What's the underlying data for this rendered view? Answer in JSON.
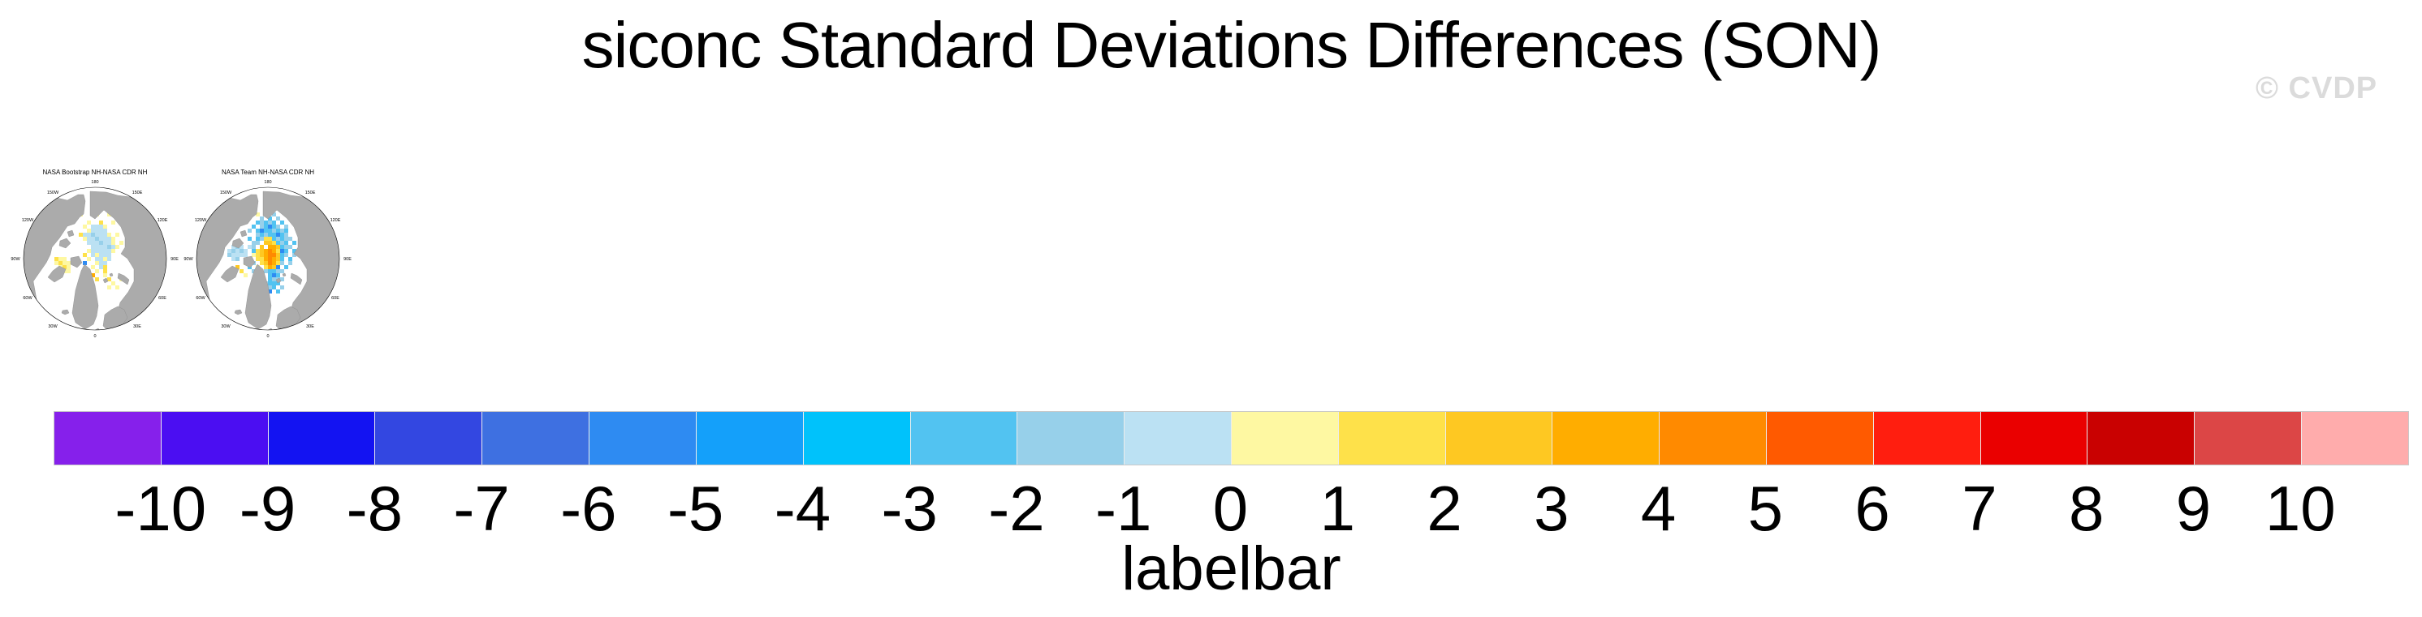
{
  "figure": {
    "title": "siconc Standard Deviations Differences (SON)",
    "watermark": "© CVDP"
  },
  "panels": [
    {
      "title": "NASA Bootstrap NH-NASA CDR NH",
      "lon_labels": [
        "180",
        "150W",
        "150E",
        "120W",
        "120E",
        "90W",
        "90E",
        "60W",
        "60E",
        "30W",
        "30E",
        "0"
      ],
      "cells": [
        [
          105,
          75,
          10
        ],
        [
          110,
          75,
          10
        ],
        [
          115,
          75,
          10
        ],
        [
          95,
          75,
          11
        ],
        [
          120,
          75,
          11
        ],
        [
          100,
          80,
          11
        ],
        [
          105,
          80,
          10
        ],
        [
          110,
          80,
          10
        ],
        [
          115,
          80,
          10
        ],
        [
          120,
          80,
          10
        ],
        [
          95,
          85,
          10
        ],
        [
          100,
          85,
          10
        ],
        [
          105,
          85,
          9
        ],
        [
          110,
          85,
          10
        ],
        [
          115,
          85,
          10
        ],
        [
          120,
          85,
          10
        ],
        [
          125,
          85,
          11
        ],
        [
          90,
          85,
          12
        ],
        [
          135,
          85,
          11
        ],
        [
          95,
          90,
          11
        ],
        [
          100,
          90,
          10
        ],
        [
          105,
          90,
          10
        ],
        [
          110,
          90,
          9
        ],
        [
          115,
          90,
          10
        ],
        [
          120,
          90,
          10
        ],
        [
          125,
          90,
          10
        ],
        [
          130,
          90,
          11
        ],
        [
          100,
          95,
          10
        ],
        [
          105,
          95,
          10
        ],
        [
          110,
          95,
          10
        ],
        [
          115,
          95,
          9
        ],
        [
          120,
          95,
          10
        ],
        [
          125,
          95,
          10
        ],
        [
          130,
          95,
          11
        ],
        [
          140,
          95,
          11
        ],
        [
          105,
          100,
          10
        ],
        [
          110,
          100,
          10
        ],
        [
          115,
          100,
          10
        ],
        [
          120,
          100,
          10
        ],
        [
          125,
          100,
          9
        ],
        [
          130,
          100,
          10
        ],
        [
          135,
          100,
          11
        ],
        [
          100,
          105,
          11
        ],
        [
          105,
          105,
          10
        ],
        [
          110,
          105,
          10
        ],
        [
          115,
          105,
          10
        ],
        [
          120,
          105,
          10
        ],
        [
          125,
          105,
          10
        ],
        [
          130,
          105,
          11
        ],
        [
          105,
          110,
          10
        ],
        [
          110,
          110,
          11
        ],
        [
          115,
          110,
          10
        ],
        [
          120,
          110,
          10
        ],
        [
          125,
          110,
          10
        ],
        [
          95,
          110,
          12
        ],
        [
          110,
          115,
          10
        ],
        [
          115,
          115,
          10
        ],
        [
          120,
          115,
          11
        ],
        [
          125,
          115,
          10
        ],
        [
          100,
          115,
          11
        ],
        [
          85,
          115,
          8
        ],
        [
          110,
          120,
          11
        ],
        [
          115,
          120,
          10
        ],
        [
          120,
          120,
          10
        ],
        [
          95,
          120,
          5
        ],
        [
          115,
          125,
          10
        ],
        [
          120,
          125,
          12
        ],
        [
          105,
          125,
          11
        ],
        [
          110,
          130,
          11
        ],
        [
          120,
          130,
          12
        ],
        [
          60,
          115,
          12
        ],
        [
          65,
          115,
          11
        ],
        [
          70,
          115,
          11
        ],
        [
          60,
          120,
          11
        ],
        [
          65,
          120,
          12
        ],
        [
          70,
          120,
          11
        ],
        [
          75,
          120,
          11
        ],
        [
          65,
          125,
          11
        ],
        [
          70,
          125,
          12
        ],
        [
          75,
          125,
          11
        ],
        [
          70,
          130,
          11
        ],
        [
          75,
          130,
          11
        ],
        [
          105,
          135,
          14
        ],
        [
          110,
          140,
          12
        ],
        [
          105,
          55,
          11
        ],
        [
          110,
          60,
          11
        ],
        [
          125,
          60,
          11
        ],
        [
          135,
          65,
          11
        ],
        [
          140,
          70,
          8
        ],
        [
          90,
          60,
          11
        ],
        [
          100,
          70,
          11
        ],
        [
          115,
          70,
          12
        ],
        [
          130,
          70,
          11
        ],
        [
          120,
          135,
          11
        ],
        [
          125,
          140,
          12
        ],
        [
          130,
          145,
          11
        ],
        [
          135,
          150,
          11
        ],
        [
          125,
          150,
          11
        ],
        [
          140,
          140,
          11
        ]
      ]
    },
    {
      "title": "NASA Team NH-NASA CDR NH",
      "lon_labels": [
        "180",
        "150W",
        "150E",
        "120W",
        "120E",
        "90W",
        "90E",
        "60W",
        "60E",
        "30W",
        "30E",
        "0"
      ],
      "cells": [
        [
          110,
          100,
          14
        ],
        [
          115,
          100,
          14
        ],
        [
          110,
          105,
          15
        ],
        [
          115,
          105,
          14
        ],
        [
          105,
          105,
          14
        ],
        [
          110,
          110,
          15
        ],
        [
          115,
          110,
          15
        ],
        [
          105,
          110,
          14
        ],
        [
          110,
          115,
          15
        ],
        [
          115,
          115,
          14
        ],
        [
          105,
          115,
          14
        ],
        [
          110,
          120,
          15
        ],
        [
          115,
          120,
          14
        ],
        [
          110,
          125,
          14
        ],
        [
          105,
          95,
          13
        ],
        [
          110,
          95,
          13
        ],
        [
          115,
          95,
          12
        ],
        [
          100,
          100,
          13
        ],
        [
          120,
          100,
          13
        ],
        [
          100,
          105,
          13
        ],
        [
          120,
          105,
          12
        ],
        [
          100,
          110,
          13
        ],
        [
          120,
          110,
          13
        ],
        [
          100,
          115,
          12
        ],
        [
          120,
          115,
          13
        ],
        [
          105,
          120,
          13
        ],
        [
          120,
          120,
          12
        ],
        [
          105,
          125,
          12
        ],
        [
          115,
          125,
          13
        ],
        [
          100,
          120,
          12
        ],
        [
          95,
          105,
          12
        ],
        [
          95,
          110,
          12
        ],
        [
          95,
          115,
          12
        ],
        [
          110,
          90,
          12
        ],
        [
          105,
          90,
          12
        ],
        [
          95,
          70,
          8
        ],
        [
          100,
          70,
          9
        ],
        [
          105,
          70,
          8
        ],
        [
          110,
          70,
          9
        ],
        [
          115,
          70,
          8
        ],
        [
          100,
          75,
          9
        ],
        [
          105,
          75,
          8
        ],
        [
          110,
          75,
          5
        ],
        [
          115,
          75,
          8
        ],
        [
          120,
          75,
          9
        ],
        [
          95,
          80,
          8
        ],
        [
          100,
          80,
          5
        ],
        [
          105,
          80,
          8
        ],
        [
          110,
          80,
          8
        ],
        [
          115,
          80,
          9
        ],
        [
          120,
          80,
          8
        ],
        [
          125,
          80,
          9
        ],
        [
          95,
          85,
          9
        ],
        [
          100,
          85,
          8
        ],
        [
          105,
          85,
          9
        ],
        [
          110,
          85,
          8
        ],
        [
          115,
          85,
          8
        ],
        [
          120,
          85,
          5
        ],
        [
          125,
          85,
          8
        ],
        [
          130,
          85,
          9
        ],
        [
          95,
          90,
          8
        ],
        [
          100,
          90,
          9
        ],
        [
          115,
          90,
          8
        ],
        [
          120,
          90,
          9
        ],
        [
          125,
          90,
          8
        ],
        [
          130,
          90,
          9
        ],
        [
          95,
          95,
          9
        ],
        [
          120,
          95,
          8
        ],
        [
          125,
          95,
          9
        ],
        [
          130,
          95,
          8
        ],
        [
          125,
          100,
          8
        ],
        [
          130,
          100,
          9
        ],
        [
          135,
          100,
          9
        ],
        [
          125,
          105,
          5
        ],
        [
          130,
          105,
          8
        ],
        [
          125,
          110,
          8
        ],
        [
          130,
          110,
          9
        ],
        [
          125,
          115,
          8
        ],
        [
          125,
          120,
          9
        ],
        [
          120,
          125,
          5
        ],
        [
          115,
          130,
          8
        ],
        [
          120,
          130,
          9
        ],
        [
          110,
          130,
          8
        ],
        [
          105,
          130,
          9
        ],
        [
          110,
          135,
          8
        ],
        [
          115,
          135,
          5
        ],
        [
          110,
          140,
          8
        ],
        [
          115,
          140,
          9
        ],
        [
          120,
          140,
          9
        ],
        [
          110,
          145,
          8
        ],
        [
          115,
          145,
          8
        ],
        [
          110,
          150,
          9
        ],
        [
          115,
          150,
          8
        ],
        [
          65,
          100,
          10
        ],
        [
          70,
          100,
          9
        ],
        [
          75,
          100,
          10
        ],
        [
          60,
          105,
          10
        ],
        [
          65,
          105,
          9
        ],
        [
          70,
          105,
          10
        ],
        [
          75,
          105,
          9
        ],
        [
          80,
          105,
          10
        ],
        [
          60,
          110,
          9
        ],
        [
          65,
          110,
          10
        ],
        [
          70,
          110,
          10
        ],
        [
          75,
          110,
          10
        ],
        [
          65,
          115,
          10
        ],
        [
          70,
          115,
          9
        ],
        [
          85,
          100,
          10
        ],
        [
          80,
          110,
          10
        ],
        [
          85,
          80,
          9
        ],
        [
          90,
          75,
          8
        ],
        [
          85,
          90,
          8
        ],
        [
          90,
          95,
          9
        ],
        [
          140,
          105,
          8
        ],
        [
          140,
          110,
          9
        ],
        [
          135,
          115,
          8
        ],
        [
          135,
          120,
          9
        ],
        [
          130,
          125,
          8
        ],
        [
          125,
          130,
          9
        ],
        [
          90,
          120,
          9
        ],
        [
          85,
          125,
          8
        ],
        [
          90,
          130,
          9
        ],
        [
          95,
          135,
          8
        ],
        [
          100,
          140,
          9
        ],
        [
          105,
          145,
          9
        ],
        [
          95,
          125,
          11
        ],
        [
          90,
          110,
          11
        ],
        [
          80,
          120,
          11
        ],
        [
          75,
          130,
          12
        ],
        [
          80,
          135,
          11
        ],
        [
          70,
          125,
          13
        ],
        [
          120,
          135,
          8
        ],
        [
          125,
          140,
          9
        ],
        [
          120,
          145,
          8
        ],
        [
          125,
          150,
          9
        ],
        [
          120,
          155,
          8
        ],
        [
          105,
          155,
          9
        ],
        [
          110,
          155,
          5
        ],
        [
          100,
          65,
          9
        ],
        [
          110,
          65,
          8
        ],
        [
          120,
          65,
          9
        ],
        [
          130,
          80,
          8
        ],
        [
          135,
          90,
          9
        ],
        [
          140,
          95,
          8
        ],
        [
          90,
          100,
          9
        ],
        [
          90,
          105,
          8
        ],
        [
          95,
          60,
          11
        ],
        [
          105,
          60,
          8
        ],
        [
          115,
          60,
          9
        ],
        [
          125,
          70,
          8
        ],
        [
          130,
          75,
          9
        ]
      ]
    }
  ],
  "labelbar": {
    "caption": "labelbar",
    "tick_labels": [
      "-10",
      "-9",
      "-8",
      "-7",
      "-6",
      "-5",
      "-4",
      "-3",
      "-2",
      "-1",
      "0",
      "1",
      "2",
      "3",
      "4",
      "5",
      "6",
      "7",
      "8",
      "9",
      "10"
    ],
    "colors": [
      "#8620EB",
      "#4B0EF2",
      "#1313F2",
      "#3347E1",
      "#3E70E1",
      "#2E8BF2",
      "#14A0FA",
      "#00C2FB",
      "#52C3F1",
      "#97D0EA",
      "#BBE1F3",
      "#FEF8A2",
      "#FEE14A",
      "#FEC822",
      "#FFAD00",
      "#FF8A00",
      "#FF5A00",
      "#FF1E0F",
      "#EA0000",
      "#C90101",
      "#DC4646",
      "#FFACAC"
    ]
  },
  "styles": {
    "land_color": "#ABABAB",
    "coast_color": "#8A8A8A",
    "ocean_color": "#FFFFFF",
    "watermark_color": "#DBDBDB",
    "text_color": "#000000"
  },
  "chart_data": {
    "type": "heatmap",
    "title": "siconc Standard Deviations Differences (SON)",
    "panels": [
      "NASA Bootstrap NH-NASA CDR NH",
      "NASA Team NH-NASA CDR NH"
    ],
    "projection": "north-polar-stereographic",
    "colorbar": {
      "label": "labelbar",
      "levels": [
        -10,
        -9,
        -8,
        -7,
        -6,
        -5,
        -4,
        -3,
        -2,
        -1,
        0,
        1,
        2,
        3,
        4,
        5,
        6,
        7,
        8,
        9,
        10
      ],
      "colors": [
        "#8620EB",
        "#4B0EF2",
        "#1313F2",
        "#3347E1",
        "#3E70E1",
        "#2E8BF2",
        "#14A0FA",
        "#00C2FB",
        "#52C3F1",
        "#97D0EA",
        "#BBE1F3",
        "#FEF8A2",
        "#FEE14A",
        "#FEC822",
        "#FFAD00",
        "#FF8A00",
        "#FF5A00",
        "#FF1E0F",
        "#EA0000",
        "#C90101",
        "#DC4646",
        "#FFACAC"
      ],
      "orientation": "horizontal"
    }
  }
}
